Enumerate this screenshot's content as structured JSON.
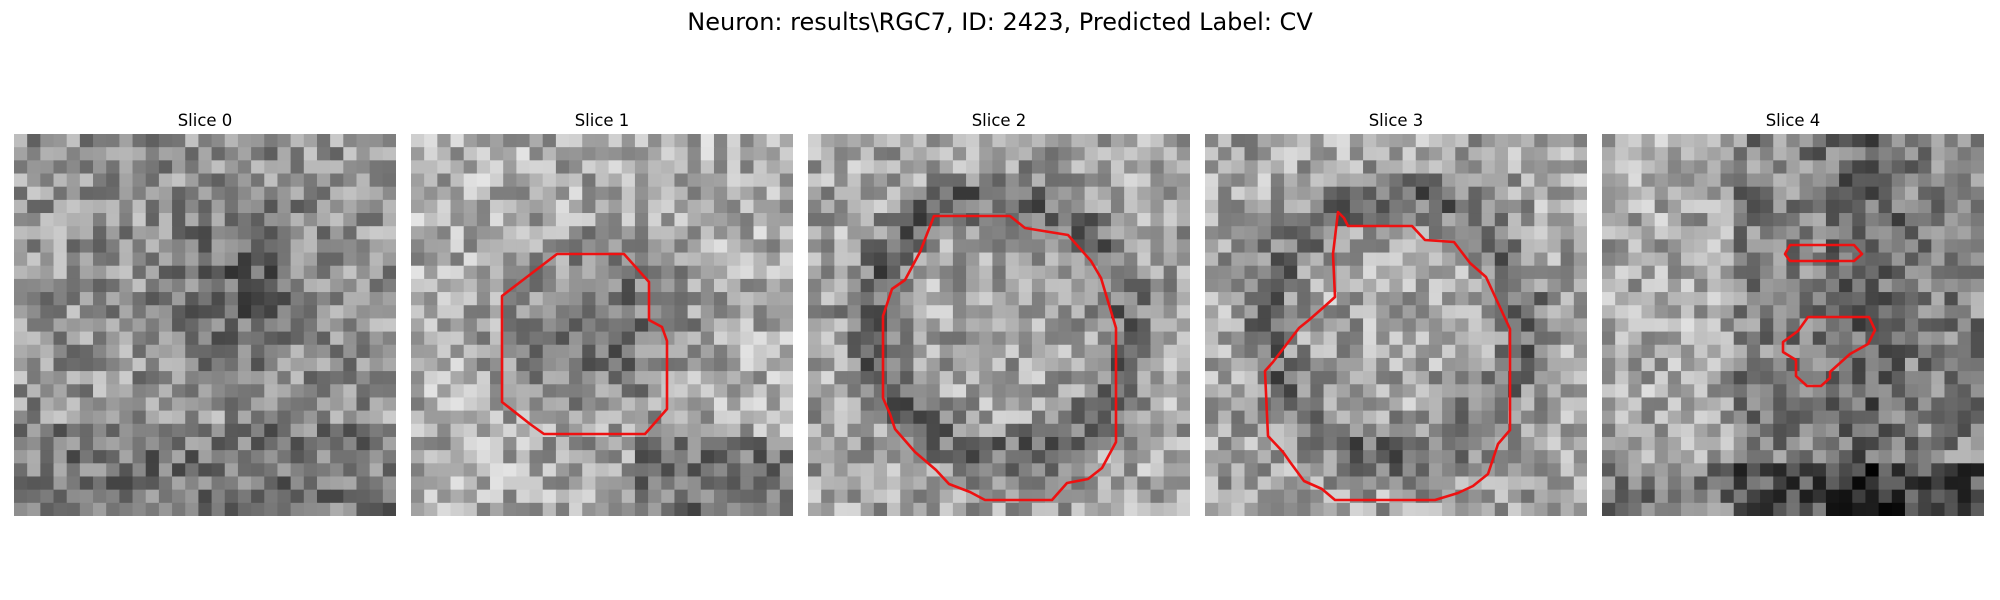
{
  "figure": {
    "title": "Neuron: results\\RGC7, ID: 2423, Predicted Label: CV"
  },
  "panels": [
    {
      "title": "Slice 0",
      "seed": 11,
      "mode": 0,
      "contours": []
    },
    {
      "title": "Slice 1",
      "seed": 23,
      "mode": 1,
      "contours": [
        [
          [
            146,
            120
          ],
          [
            213,
            120
          ],
          [
            238,
            148
          ],
          [
            238,
            186
          ],
          [
            251,
            193
          ],
          [
            256,
            207
          ],
          [
            256,
            275
          ],
          [
            234,
            300
          ],
          [
            133,
            300
          ],
          [
            119,
            290
          ],
          [
            91,
            268
          ],
          [
            91,
            162
          ]
        ]
      ]
    },
    {
      "title": "Slice 2",
      "seed": 37,
      "mode": 2,
      "contours": [
        [
          [
            126,
            82
          ],
          [
            202,
            82
          ],
          [
            217,
            94
          ],
          [
            260,
            101
          ],
          [
            283,
            127
          ],
          [
            293,
            144
          ],
          [
            308,
            194
          ],
          [
            308,
            308
          ],
          [
            294,
            334
          ],
          [
            280,
            345
          ],
          [
            259,
            349
          ],
          [
            244,
            366
          ],
          [
            177,
            366
          ],
          [
            162,
            358
          ],
          [
            141,
            350
          ],
          [
            128,
            336
          ],
          [
            107,
            318
          ],
          [
            87,
            295
          ],
          [
            82,
            280
          ],
          [
            75,
            264
          ],
          [
            75,
            182
          ],
          [
            84,
            155
          ],
          [
            97,
            146
          ],
          [
            112,
            118
          ]
        ]
      ]
    },
    {
      "title": "Slice 3",
      "seed": 41,
      "mode": 2,
      "contours": [
        [
          [
            133,
            78
          ],
          [
            139,
            84
          ],
          [
            143,
            92
          ],
          [
            207,
            92
          ],
          [
            220,
            106
          ],
          [
            249,
            108
          ],
          [
            265,
            129
          ],
          [
            281,
            143
          ],
          [
            305,
            195
          ],
          [
            305,
            296
          ],
          [
            293,
            310
          ],
          [
            283,
            340
          ],
          [
            268,
            352
          ],
          [
            253,
            359
          ],
          [
            230,
            366
          ],
          [
            130,
            366
          ],
          [
            117,
            355
          ],
          [
            99,
            347
          ],
          [
            85,
            328
          ],
          [
            78,
            318
          ],
          [
            63,
            302
          ],
          [
            62,
            281
          ],
          [
            60,
            237
          ],
          [
            68,
            228
          ],
          [
            94,
            194
          ],
          [
            104,
            186
          ],
          [
            120,
            172
          ],
          [
            130,
            163
          ],
          [
            128,
            120
          ]
        ]
      ]
    },
    {
      "title": "Slice 4",
      "seed": 53,
      "mode": 4,
      "contours": [
        [
          [
            188,
            111
          ],
          [
            252,
            111
          ],
          [
            260,
            120
          ],
          [
            252,
            127
          ],
          [
            188,
            127
          ],
          [
            183,
            120
          ]
        ],
        [
          [
            206,
            183
          ],
          [
            267,
            183
          ],
          [
            273,
            196
          ],
          [
            266,
            210
          ],
          [
            248,
            220
          ],
          [
            228,
            238
          ],
          [
            228,
            244
          ],
          [
            219,
            252
          ],
          [
            205,
            252
          ],
          [
            194,
            242
          ],
          [
            194,
            226
          ],
          [
            181,
            218
          ],
          [
            181,
            208
          ],
          [
            196,
            197
          ]
        ]
      ]
    }
  ]
}
